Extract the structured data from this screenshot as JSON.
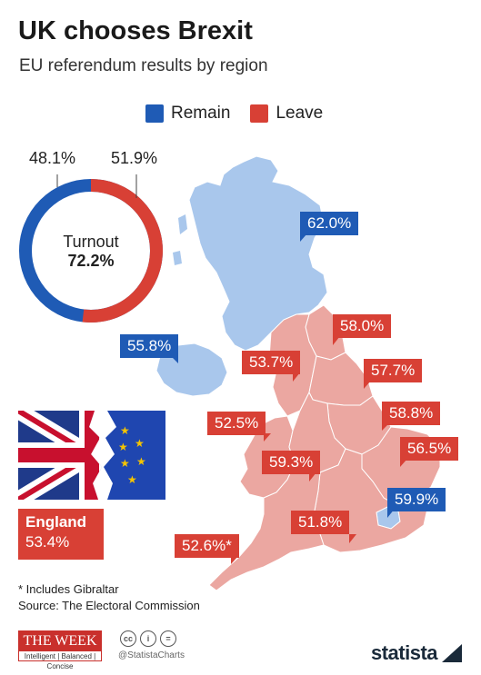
{
  "title": "UK chooses Brexit",
  "subtitle": "EU referendum results by region",
  "legend": {
    "remain": {
      "label": "Remain",
      "color": "#1f5bb5"
    },
    "leave": {
      "label": "Leave",
      "color": "#d84035"
    }
  },
  "donut": {
    "remain_pct": "48.1%",
    "leave_pct": "51.9%",
    "remain_value": 48.1,
    "leave_value": 51.9,
    "turnout_label": "Turnout",
    "turnout_value": "72.2%"
  },
  "regions": [
    {
      "name": "Scotland",
      "value": "62.0%",
      "side": "remain"
    },
    {
      "name": "Northern Ireland",
      "value": "55.8%",
      "side": "remain"
    },
    {
      "name": "North East",
      "value": "58.0%",
      "side": "leave"
    },
    {
      "name": "North West",
      "value": "53.7%",
      "side": "leave"
    },
    {
      "name": "Yorkshire and the Humber",
      "value": "57.7%",
      "side": "leave"
    },
    {
      "name": "Wales",
      "value": "52.5%",
      "side": "leave"
    },
    {
      "name": "East Midlands",
      "value": "58.8%",
      "side": "leave"
    },
    {
      "name": "West Midlands",
      "value": "59.3%",
      "side": "leave"
    },
    {
      "name": "East of England",
      "value": "56.5%",
      "side": "leave"
    },
    {
      "name": "London",
      "value": "59.9%",
      "side": "remain"
    },
    {
      "name": "South East",
      "value": "51.8%",
      "side": "leave"
    },
    {
      "name": "South West",
      "value": "52.6%*",
      "side": "leave"
    }
  ],
  "england": {
    "label": "England",
    "value": "53.4%"
  },
  "footnote": {
    "line1": "* Includes Gibraltar",
    "line2": "Source: The Electoral Commission"
  },
  "footer": {
    "week_title": "THE WEEK",
    "week_tagline": "Intelligent | Balanced | Concise",
    "cc_icons": [
      "cc-icon",
      "person-icon",
      "equals-icon"
    ],
    "handle": "@StatistaCharts",
    "brand": "statista"
  },
  "colors": {
    "remain_light": "#a9c7ec",
    "leave_light": "#eba7a1"
  }
}
